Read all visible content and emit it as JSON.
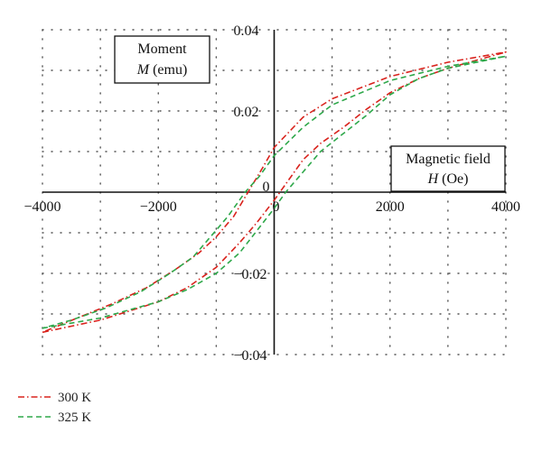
{
  "chart_data": {
    "type": "line",
    "xlim": [
      -4000,
      4000
    ],
    "ylim": [
      -0.04,
      0.04
    ],
    "grid": true,
    "legend_position": "bottom-left",
    "x_ticks": [
      {
        "value": -4000,
        "label": "−4000"
      },
      {
        "value": -2000,
        "label": "−2000"
      },
      {
        "value": 0,
        "label": "0"
      },
      {
        "value": 2000,
        "label": "2000"
      },
      {
        "value": 4000,
        "label": "4000"
      }
    ],
    "y_ticks": [
      {
        "value": 0.04,
        "label": "0.04"
      },
      {
        "value": 0.02,
        "label": "0.02"
      },
      {
        "value": 0,
        "label": "0"
      },
      {
        "value": -0.02,
        "label": "−0.02"
      },
      {
        "value": -0.04,
        "label": "−0.04"
      }
    ],
    "y_label": {
      "line1": "Moment",
      "symbol": "M",
      "unit": "(emu)"
    },
    "x_label": {
      "line1": "Magnetic field",
      "symbol": "H",
      "unit": "(Oe)"
    },
    "series": [
      {
        "name": "300 K",
        "color": "#d9231d",
        "style": "dash-dot",
        "points": [
          [
            -4000,
            -0.0345
          ],
          [
            -3000,
            -0.0315
          ],
          [
            -2000,
            -0.027
          ],
          [
            -1500,
            -0.0235
          ],
          [
            -1000,
            -0.0185
          ],
          [
            -600,
            -0.0125
          ],
          [
            -300,
            -0.0075
          ],
          [
            0,
            -0.002
          ],
          [
            250,
            0.003
          ],
          [
            500,
            0.008
          ],
          [
            800,
            0.012
          ],
          [
            1200,
            0.016
          ],
          [
            1600,
            0.0205
          ],
          [
            2000,
            0.0245
          ],
          [
            2500,
            0.028
          ],
          [
            3000,
            0.0305
          ],
          [
            3500,
            0.0325
          ],
          [
            4000,
            0.0345
          ],
          [
            3000,
            0.032
          ],
          [
            2000,
            0.0285
          ],
          [
            1000,
            0.023
          ],
          [
            500,
            0.0185
          ],
          [
            0,
            0.011
          ],
          [
            -200,
            0.006
          ],
          [
            -450,
            0.0
          ],
          [
            -700,
            -0.006
          ],
          [
            -1000,
            -0.011
          ],
          [
            -1300,
            -0.015
          ],
          [
            -1700,
            -0.019
          ],
          [
            -2200,
            -0.0235
          ],
          [
            -2800,
            -0.0275
          ],
          [
            -3400,
            -0.031
          ],
          [
            -4000,
            -0.0345
          ]
        ]
      },
      {
        "name": "325 K",
        "color": "#2ea84a",
        "style": "dash",
        "points": [
          [
            -4000,
            -0.0335
          ],
          [
            -3000,
            -0.031
          ],
          [
            -2000,
            -0.027
          ],
          [
            -1500,
            -0.024
          ],
          [
            -1000,
            -0.02
          ],
          [
            -600,
            -0.015
          ],
          [
            -300,
            -0.0095
          ],
          [
            0,
            -0.004
          ],
          [
            200,
            0.0
          ],
          [
            500,
            0.005
          ],
          [
            800,
            0.01
          ],
          [
            1200,
            0.0145
          ],
          [
            1600,
            0.019
          ],
          [
            2000,
            0.024
          ],
          [
            2500,
            0.028
          ],
          [
            3000,
            0.0305
          ],
          [
            3500,
            0.032
          ],
          [
            4000,
            0.0335
          ],
          [
            3000,
            0.031
          ],
          [
            2000,
            0.0275
          ],
          [
            1000,
            0.0215
          ],
          [
            500,
            0.016
          ],
          [
            0,
            0.009
          ],
          [
            -250,
            0.004
          ],
          [
            -500,
            0.0
          ],
          [
            -800,
            -0.006
          ],
          [
            -1100,
            -0.011
          ],
          [
            -1400,
            -0.016
          ],
          [
            -1800,
            -0.02
          ],
          [
            -2300,
            -0.0245
          ],
          [
            -2900,
            -0.0285
          ],
          [
            -3500,
            -0.0315
          ],
          [
            -4000,
            -0.0335
          ]
        ]
      }
    ]
  }
}
